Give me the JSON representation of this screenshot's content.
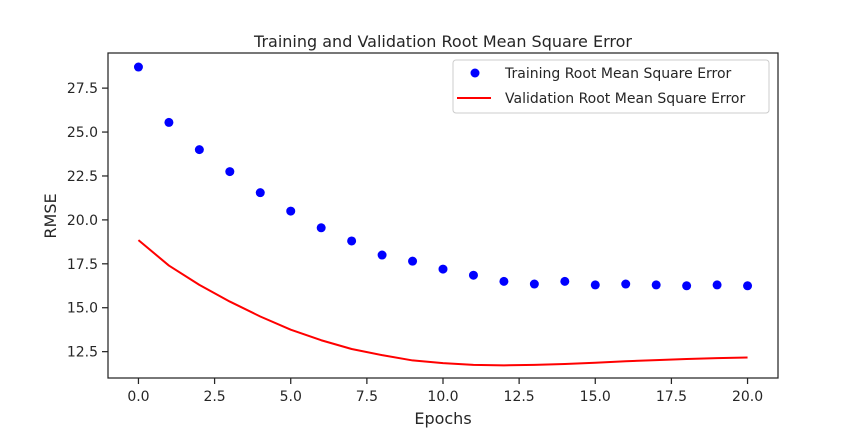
{
  "chart_data": {
    "type": "line",
    "title": "Training and Validation Root Mean Square Error",
    "xlabel": "Epochs",
    "ylabel": "RMSE",
    "xlim": [
      -1.0,
      21.0
    ],
    "ylim": [
      11.0,
      29.5
    ],
    "x_ticks": [
      0.0,
      2.5,
      5.0,
      7.5,
      10.0,
      12.5,
      15.0,
      17.5,
      20.0
    ],
    "x_tick_labels": [
      "0.0",
      "2.5",
      "5.0",
      "7.5",
      "10.0",
      "12.5",
      "15.0",
      "17.5",
      "20.0"
    ],
    "y_ticks": [
      12.5,
      15.0,
      17.5,
      20.0,
      22.5,
      25.0,
      27.5
    ],
    "y_tick_labels": [
      "12.5",
      "15.0",
      "17.5",
      "20.0",
      "22.5",
      "25.0",
      "27.5"
    ],
    "grid": false,
    "legend_position": "top-right",
    "series": [
      {
        "name": "Training Root Mean Square Error",
        "style": "scatter",
        "color": "#0000ff",
        "x": [
          0,
          1,
          2,
          3,
          4,
          5,
          6,
          7,
          8,
          9,
          10,
          11,
          12,
          13,
          14,
          15,
          16,
          17,
          18,
          19,
          20
        ],
        "values": [
          28.7,
          25.55,
          24.0,
          22.75,
          21.55,
          20.5,
          19.55,
          18.8,
          18.0,
          17.65,
          17.2,
          16.85,
          16.5,
          16.35,
          16.5,
          16.3,
          16.35,
          16.3,
          16.25,
          16.3,
          16.25
        ]
      },
      {
        "name": "Validation Root Mean Square Error",
        "style": "line",
        "color": "#ff0000",
        "x": [
          0,
          1,
          2,
          3,
          4,
          5,
          6,
          7,
          8,
          9,
          10,
          11,
          12,
          13,
          14,
          15,
          16,
          17,
          18,
          19,
          20
        ],
        "values": [
          18.85,
          17.4,
          16.3,
          15.35,
          14.5,
          13.75,
          13.15,
          12.65,
          12.3,
          12.0,
          11.85,
          11.75,
          11.72,
          11.75,
          11.8,
          11.87,
          11.95,
          12.02,
          12.08,
          12.13,
          12.17
        ]
      }
    ]
  }
}
